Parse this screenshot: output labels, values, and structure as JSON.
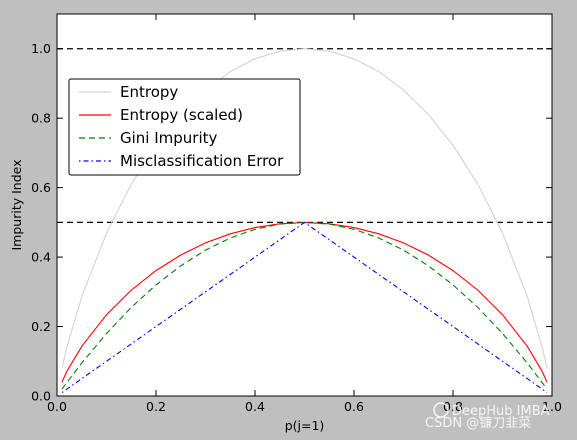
{
  "chart_data": {
    "type": "line",
    "xlabel": "p(j=1)",
    "ylabel": "Impurity Index",
    "xlim": [
      0.0,
      1.0
    ],
    "ylim": [
      0.0,
      1.1
    ],
    "xticks": [
      "0.0",
      "0.2",
      "0.4",
      "0.6",
      "0.8",
      "1.0"
    ],
    "yticks": [
      "0.0",
      "0.2",
      "0.4",
      "0.6",
      "0.8",
      "1.0"
    ],
    "grid": false,
    "legend_placement": "upper-left",
    "x": [
      0.01,
      0.02,
      0.05,
      0.1,
      0.15,
      0.2,
      0.25,
      0.3,
      0.35,
      0.4,
      0.45,
      0.5,
      0.55,
      0.6,
      0.65,
      0.7,
      0.75,
      0.8,
      0.85,
      0.9,
      0.95,
      0.98,
      0.99
    ],
    "series": [
      {
        "name": "Entropy",
        "color": "#d3d3d3",
        "dash": "solid",
        "values": [
          0.081,
          0.141,
          0.286,
          0.469,
          0.61,
          0.722,
          0.811,
          0.881,
          0.934,
          0.971,
          0.993,
          1.0,
          0.993,
          0.971,
          0.934,
          0.881,
          0.811,
          0.722,
          0.61,
          0.469,
          0.286,
          0.141,
          0.081
        ]
      },
      {
        "name": "Entropy (scaled)",
        "color": "#ff0000",
        "dash": "solid",
        "values": [
          0.04,
          0.071,
          0.143,
          0.234,
          0.305,
          0.361,
          0.406,
          0.441,
          0.467,
          0.485,
          0.496,
          0.5,
          0.496,
          0.485,
          0.467,
          0.441,
          0.406,
          0.361,
          0.305,
          0.234,
          0.143,
          0.071,
          0.04
        ]
      },
      {
        "name": "Gini Impurity",
        "color": "#008000",
        "dash": "dashed",
        "values": [
          0.02,
          0.039,
          0.095,
          0.18,
          0.255,
          0.32,
          0.375,
          0.42,
          0.455,
          0.48,
          0.495,
          0.5,
          0.495,
          0.48,
          0.455,
          0.42,
          0.375,
          0.32,
          0.255,
          0.18,
          0.095,
          0.039,
          0.02
        ]
      },
      {
        "name": "Misclassification Error",
        "color": "#0000ff",
        "dash": "dashdot",
        "values": [
          0.01,
          0.02,
          0.05,
          0.1,
          0.15,
          0.2,
          0.25,
          0.3,
          0.35,
          0.4,
          0.45,
          0.5,
          0.45,
          0.4,
          0.35,
          0.3,
          0.25,
          0.2,
          0.15,
          0.1,
          0.05,
          0.02,
          0.01
        ]
      }
    ],
    "reference_lines": [
      {
        "axis": "y",
        "value": 1.0,
        "color": "#000000",
        "dash": "dashed"
      },
      {
        "axis": "y",
        "value": 0.5,
        "color": "#000000",
        "dash": "dashed"
      }
    ]
  },
  "watermark": {
    "line1": "DeepHub IMBA",
    "line2": "CSDN @镰刀韭菜"
  }
}
